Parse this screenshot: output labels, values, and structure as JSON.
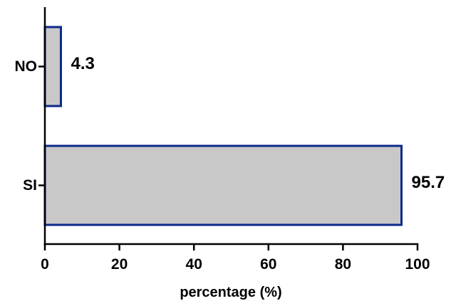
{
  "chart_data": {
    "type": "bar",
    "orientation": "horizontal",
    "categories": [
      "NO",
      "SI"
    ],
    "values": [
      4.3,
      95.7
    ],
    "data_labels": [
      "4.3",
      "95.7"
    ],
    "xlabel": "percentage (%)",
    "ylabel": "",
    "xlim": [
      0,
      100
    ],
    "x_ticks": [
      0,
      20,
      40,
      60,
      80,
      100
    ],
    "x_tick_labels": [
      "0",
      "20",
      "40",
      "60",
      "80",
      "100"
    ],
    "grid": false,
    "colors": {
      "bar_fill": "#c8c8c8",
      "bar_stroke": "#0d2a8a",
      "axis": "#000000"
    }
  }
}
